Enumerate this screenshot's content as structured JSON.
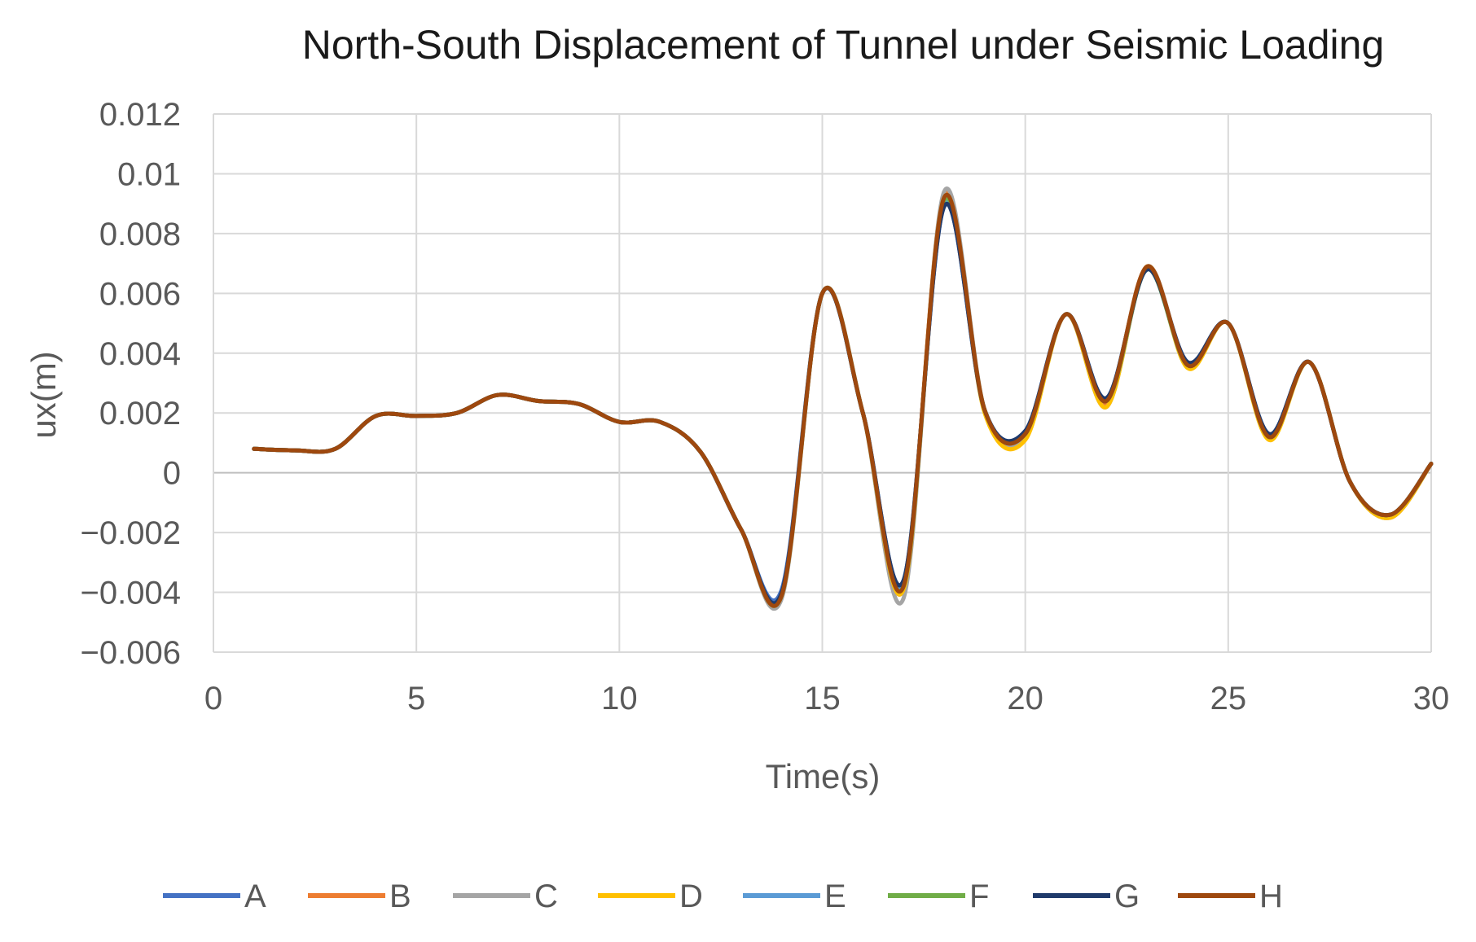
{
  "chart_data": {
    "type": "line",
    "title": "North-South Displacement of Tunnel under Seismic Loading",
    "xlabel": "Time(s)",
    "ylabel": "ux(m)",
    "xlim": [
      0,
      30
    ],
    "ylim": [
      -0.006,
      0.012
    ],
    "xticks": [
      0,
      5,
      10,
      15,
      20,
      25,
      30
    ],
    "xtick_labels": [
      "0",
      "5",
      "10",
      "15",
      "20",
      "25",
      "30"
    ],
    "yticks": [
      0.012,
      0.01,
      0.008,
      0.006,
      0.004,
      0.002,
      0,
      -0.002,
      -0.004,
      -0.006
    ],
    "ytick_labels": [
      "0.012",
      "0.01",
      "0.008",
      "0.006",
      "0.004",
      "0.002",
      "0",
      "−0.002",
      "−0.004",
      "−0.006"
    ],
    "grid": true,
    "legend_position": "bottom",
    "x": [
      1,
      2,
      3,
      4,
      5,
      6,
      7,
      8,
      9,
      10,
      11,
      12,
      13,
      14,
      15,
      16,
      17,
      18,
      19,
      20,
      21,
      22,
      23,
      24,
      25,
      26,
      27,
      28,
      29,
      30
    ],
    "series": [
      {
        "name": "A",
        "color": "#4472C4",
        "values": [
          0.0008,
          0.00075,
          0.0008,
          0.0019,
          0.0019,
          0.002,
          0.0026,
          0.0024,
          0.0023,
          0.0017,
          0.0017,
          0.0007,
          -0.0019,
          -0.0039,
          0.006,
          0.002,
          -0.0036,
          0.0089,
          0.0021,
          0.0014,
          0.0053,
          0.0025,
          0.0068,
          0.0037,
          0.005,
          0.0013,
          0.0037,
          -0.0003,
          -0.0014,
          0.0003
        ]
      },
      {
        "name": "B",
        "color": "#ED7D31",
        "values": [
          0.0008,
          0.00075,
          0.0008,
          0.0019,
          0.0019,
          0.002,
          0.0026,
          0.0024,
          0.0023,
          0.0017,
          0.0017,
          0.0007,
          -0.0019,
          -0.0041,
          0.006,
          0.002,
          -0.0039,
          0.0093,
          0.0021,
          0.0012,
          0.0053,
          0.0023,
          0.0069,
          0.0036,
          0.005,
          0.0012,
          0.0037,
          -0.0003,
          -0.0015,
          0.0003
        ]
      },
      {
        "name": "C",
        "color": "#A5A5A5",
        "values": [
          0.0008,
          0.00075,
          0.0008,
          0.0019,
          0.0019,
          0.002,
          0.0026,
          0.0024,
          0.0023,
          0.0017,
          0.0017,
          0.0007,
          -0.0019,
          -0.0042,
          0.006,
          0.002,
          -0.0042,
          0.0094,
          0.0021,
          0.0012,
          0.0053,
          0.0022,
          0.0069,
          0.0036,
          0.005,
          0.0012,
          0.0037,
          -0.0003,
          -0.0015,
          0.0003
        ]
      },
      {
        "name": "D",
        "color": "#FFC000",
        "values": [
          0.0008,
          0.00075,
          0.0008,
          0.0019,
          0.0019,
          0.002,
          0.0026,
          0.0024,
          0.0023,
          0.0017,
          0.0017,
          0.0007,
          -0.0019,
          -0.0041,
          0.006,
          0.002,
          -0.0039,
          0.0092,
          0.002,
          0.0011,
          0.0053,
          0.0022,
          0.0069,
          0.0035,
          0.005,
          0.0011,
          0.0037,
          -0.0003,
          -0.0015,
          0.0003
        ]
      },
      {
        "name": "E",
        "color": "#5B9BD5",
        "values": [
          0.0008,
          0.00075,
          0.0008,
          0.0019,
          0.0019,
          0.002,
          0.0026,
          0.0024,
          0.0023,
          0.0017,
          0.0017,
          0.0007,
          -0.0019,
          -0.004,
          0.006,
          0.002,
          -0.0037,
          0.009,
          0.0021,
          0.0013,
          0.0053,
          0.0024,
          0.0068,
          0.0036,
          0.005,
          0.0012,
          0.0037,
          -0.0003,
          -0.0014,
          0.0003
        ]
      },
      {
        "name": "F",
        "color": "#70AD47",
        "values": [
          0.0008,
          0.00075,
          0.0008,
          0.0019,
          0.0019,
          0.002,
          0.0026,
          0.0024,
          0.0023,
          0.0017,
          0.0017,
          0.0007,
          -0.0019,
          -0.0041,
          0.006,
          0.002,
          -0.0038,
          0.0091,
          0.0021,
          0.0013,
          0.0053,
          0.0024,
          0.0068,
          0.0036,
          0.005,
          0.0012,
          0.0037,
          -0.0003,
          -0.0014,
          0.0003
        ]
      },
      {
        "name": "G",
        "color": "#1F3A6B",
        "values": [
          0.0008,
          0.00075,
          0.0008,
          0.0019,
          0.0019,
          0.002,
          0.0026,
          0.0024,
          0.0023,
          0.0017,
          0.0017,
          0.0007,
          -0.0019,
          -0.004,
          0.006,
          0.002,
          -0.0036,
          0.0089,
          0.0021,
          0.0014,
          0.0053,
          0.0025,
          0.0068,
          0.0037,
          0.005,
          0.0013,
          0.0037,
          -0.0003,
          -0.0014,
          0.0003
        ]
      },
      {
        "name": "H",
        "color": "#9E480E",
        "values": [
          0.0008,
          0.00075,
          0.0008,
          0.0019,
          0.0019,
          0.002,
          0.0026,
          0.0024,
          0.0023,
          0.0017,
          0.0017,
          0.0007,
          -0.0019,
          -0.0041,
          0.006,
          0.002,
          -0.0038,
          0.0092,
          0.0021,
          0.0013,
          0.0053,
          0.0024,
          0.0069,
          0.0036,
          0.005,
          0.0012,
          0.0037,
          -0.0003,
          -0.0014,
          0.0003
        ]
      }
    ]
  }
}
